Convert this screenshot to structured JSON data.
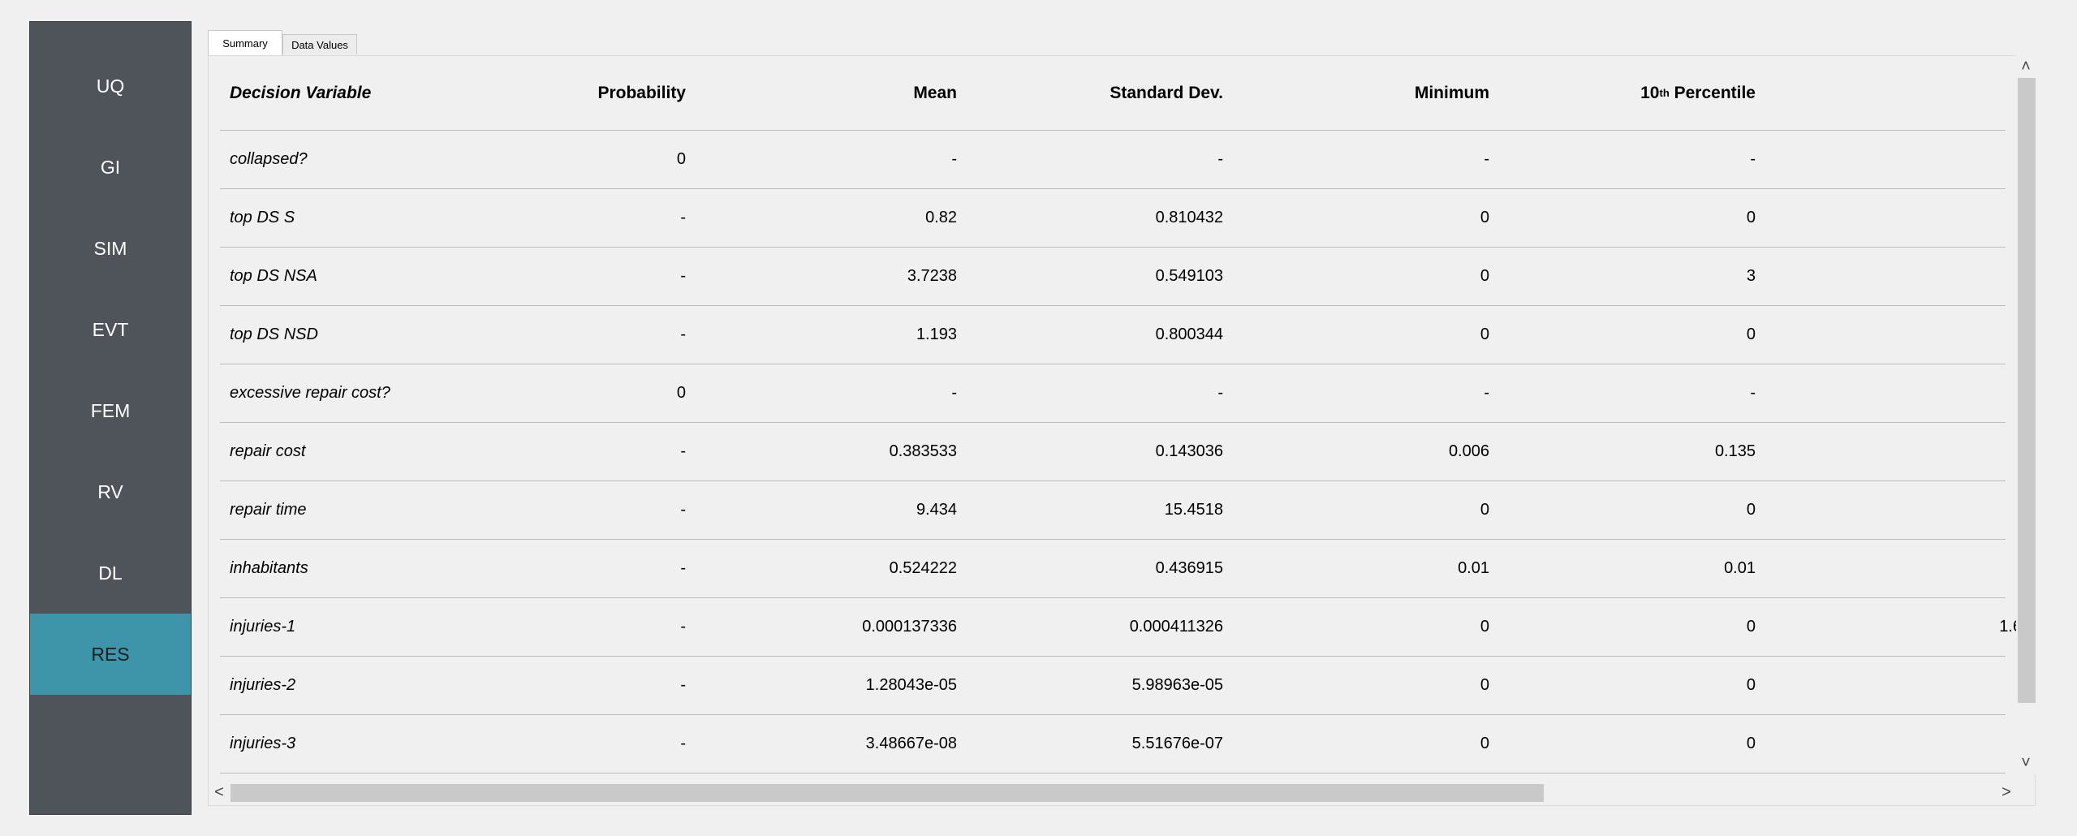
{
  "sidebar": {
    "items": [
      {
        "label": "UQ",
        "active": false
      },
      {
        "label": "GI",
        "active": false
      },
      {
        "label": "SIM",
        "active": false
      },
      {
        "label": "EVT",
        "active": false
      },
      {
        "label": "FEM",
        "active": false
      },
      {
        "label": "RV",
        "active": false
      },
      {
        "label": "DL",
        "active": false
      },
      {
        "label": "RES",
        "active": true
      }
    ],
    "active_color": "#3e94a8",
    "background_color": "#4f535a"
  },
  "tabs": [
    {
      "label": "Summary",
      "selected": true
    },
    {
      "label": "Data Values",
      "selected": false
    }
  ],
  "table": {
    "headers": {
      "name": "Decision Variable",
      "probability": "Probability",
      "mean": "Mean",
      "std": "Standard Dev.",
      "min": "Minimum",
      "p10_base": "10",
      "p10_sup": "th",
      "p10_suffix": " Percentile"
    },
    "rows": [
      {
        "name": "collapsed?",
        "probability": "0",
        "mean": "-",
        "std": "-",
        "min": "-",
        "p10": "-",
        "next": ""
      },
      {
        "name": "top DS S",
        "probability": "-",
        "mean": "0.82",
        "std": "0.810432",
        "min": "0",
        "p10": "0",
        "next": ""
      },
      {
        "name": "top DS NSA",
        "probability": "-",
        "mean": "3.7238",
        "std": "0.549103",
        "min": "0",
        "p10": "3",
        "next": ""
      },
      {
        "name": "top DS NSD",
        "probability": "-",
        "mean": "1.193",
        "std": "0.800344",
        "min": "0",
        "p10": "0",
        "next": ""
      },
      {
        "name": "excessive repair cost?",
        "probability": "0",
        "mean": "-",
        "std": "-",
        "min": "-",
        "p10": "-",
        "next": ""
      },
      {
        "name": "repair cost",
        "probability": "-",
        "mean": "0.383533",
        "std": "0.143036",
        "min": "0.006",
        "p10": "0.135",
        "next": ""
      },
      {
        "name": "repair time",
        "probability": "-",
        "mean": "9.434",
        "std": "15.4518",
        "min": "0",
        "p10": "0",
        "next": ""
      },
      {
        "name": "inhabitants",
        "probability": "-",
        "mean": "0.524222",
        "std": "0.436915",
        "min": "0.01",
        "p10": "0.01",
        "next": ""
      },
      {
        "name": "injuries-1",
        "probability": "-",
        "mean": "0.000137336",
        "std": "0.000411326",
        "min": "0",
        "p10": "0",
        "next": "1.6"
      },
      {
        "name": "injuries-2",
        "probability": "-",
        "mean": "1.28043e-05",
        "std": "5.98963e-05",
        "min": "0",
        "p10": "0",
        "next": ""
      },
      {
        "name": "injuries-3",
        "probability": "-",
        "mean": "3.48667e-08",
        "std": "5.51676e-07",
        "min": "0",
        "p10": "0",
        "next": ""
      }
    ]
  },
  "scrollbars": {
    "up_arrow": "˄",
    "down_arrow": "˅",
    "left_arrow": "<",
    "right_arrow": ">",
    "vertical_position": 0,
    "horizontal_position": 0
  }
}
